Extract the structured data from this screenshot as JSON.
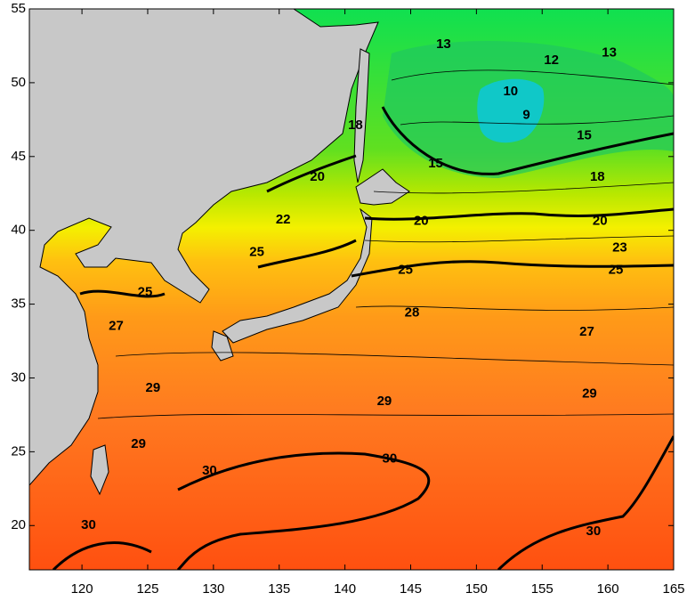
{
  "map": {
    "xlim": [
      116,
      165
    ],
    "ylim": [
      17,
      55
    ],
    "xticks": [
      120,
      125,
      130,
      135,
      140,
      145,
      150,
      155,
      160,
      165
    ],
    "yticks": [
      20,
      25,
      30,
      35,
      40,
      45,
      50,
      55
    ],
    "contour_labels": [
      {
        "value": 13,
        "lon": 147.5,
        "lat": 52.6
      },
      {
        "value": 13,
        "lon": 160.1,
        "lat": 52.0
      },
      {
        "value": 12,
        "lon": 155.7,
        "lat": 51.5
      },
      {
        "value": 10,
        "lon": 152.6,
        "lat": 49.4
      },
      {
        "value": 9,
        "lon": 153.8,
        "lat": 47.8
      },
      {
        "value": 18,
        "lon": 140.8,
        "lat": 47.1
      },
      {
        "value": 15,
        "lon": 158.2,
        "lat": 46.4
      },
      {
        "value": 15,
        "lon": 146.9,
        "lat": 44.5
      },
      {
        "value": 20,
        "lon": 137.9,
        "lat": 43.6
      },
      {
        "value": 18,
        "lon": 159.2,
        "lat": 43.6
      },
      {
        "value": 22,
        "lon": 135.3,
        "lat": 40.7
      },
      {
        "value": 20,
        "lon": 145.8,
        "lat": 40.6
      },
      {
        "value": 20,
        "lon": 159.4,
        "lat": 40.6
      },
      {
        "value": 25,
        "lon": 133.3,
        "lat": 38.5
      },
      {
        "value": 23,
        "lon": 160.9,
        "lat": 38.8
      },
      {
        "value": 25,
        "lon": 144.6,
        "lat": 37.3
      },
      {
        "value": 25,
        "lon": 160.6,
        "lat": 37.3
      },
      {
        "value": 25,
        "lon": 124.8,
        "lat": 35.8
      },
      {
        "value": 28,
        "lon": 145.1,
        "lat": 34.4
      },
      {
        "value": 27,
        "lon": 122.6,
        "lat": 33.5
      },
      {
        "value": 27,
        "lon": 158.4,
        "lat": 33.1
      },
      {
        "value": 29,
        "lon": 125.4,
        "lat": 29.3
      },
      {
        "value": 29,
        "lon": 143.0,
        "lat": 28.4
      },
      {
        "value": 29,
        "lon": 158.6,
        "lat": 28.9
      },
      {
        "value": 29,
        "lon": 124.3,
        "lat": 25.5
      },
      {
        "value": 30,
        "lon": 129.7,
        "lat": 23.7
      },
      {
        "value": 30,
        "lon": 143.4,
        "lat": 24.5
      },
      {
        "value": 30,
        "lon": 120.5,
        "lat": 20.0
      },
      {
        "value": 30,
        "lon": 158.9,
        "lat": 19.6
      }
    ]
  }
}
